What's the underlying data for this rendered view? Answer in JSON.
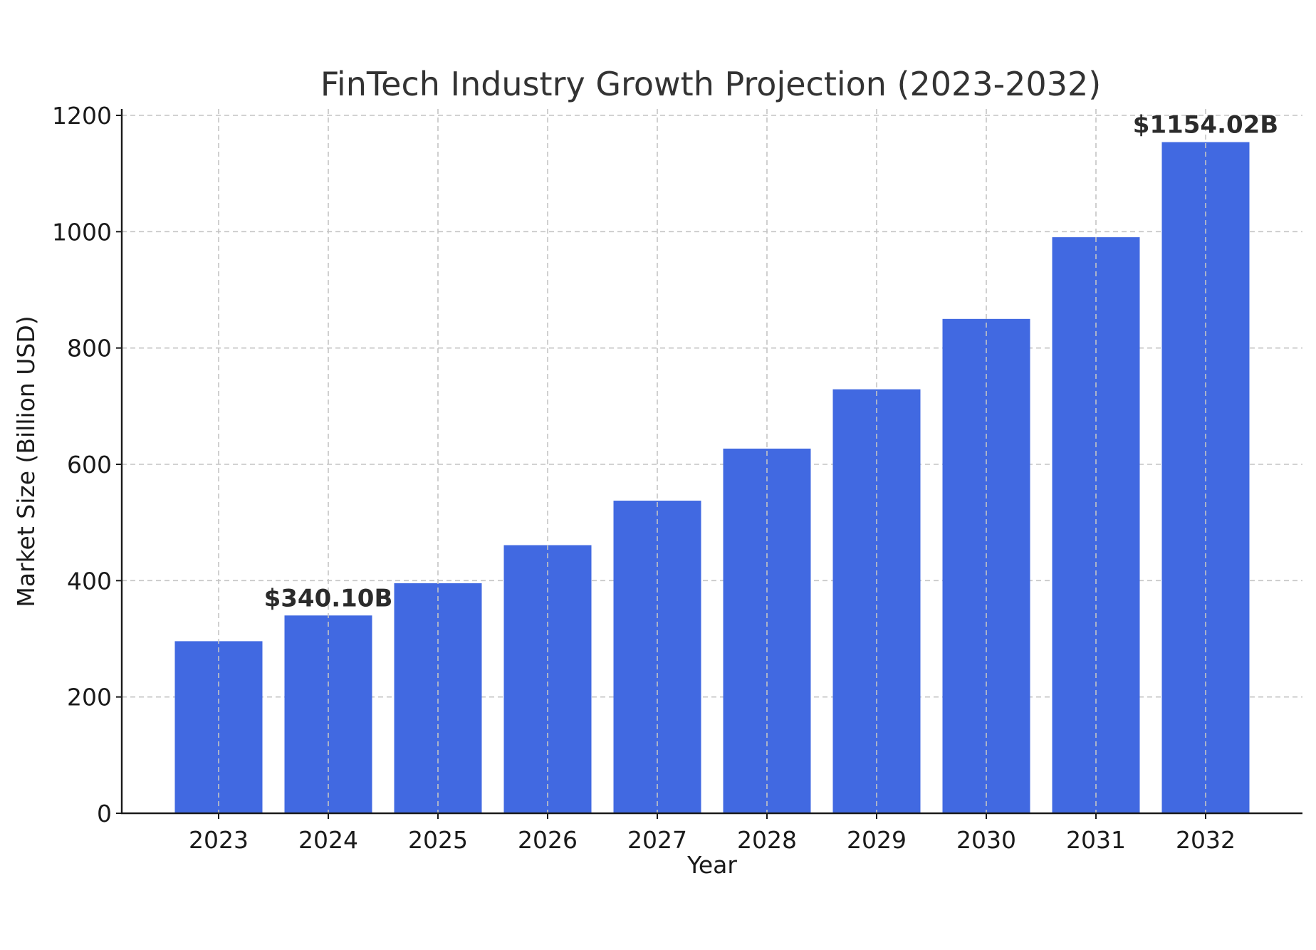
{
  "chart_data": {
    "type": "bar",
    "title": "FinTech Industry Growth Projection (2023-2032)",
    "xlabel": "Year",
    "ylabel": "Market Size (Billion USD)",
    "categories": [
      "2023",
      "2024",
      "2025",
      "2026",
      "2027",
      "2028",
      "2029",
      "2030",
      "2031",
      "2032"
    ],
    "values": [
      295.85,
      340.1,
      395.5,
      461.0,
      537.5,
      627.0,
      729.0,
      850.0,
      990.5,
      1154.02
    ],
    "ylim": [
      0,
      1200
    ],
    "yticks": [
      "0",
      "200",
      "400",
      "600",
      "800",
      "1000",
      "1200"
    ],
    "annotations": [
      {
        "category": "2024",
        "text": "$340.10B"
      },
      {
        "category": "2032",
        "text": "$1154.02B"
      }
    ],
    "grid": true,
    "bar_color": "#4169e1"
  }
}
